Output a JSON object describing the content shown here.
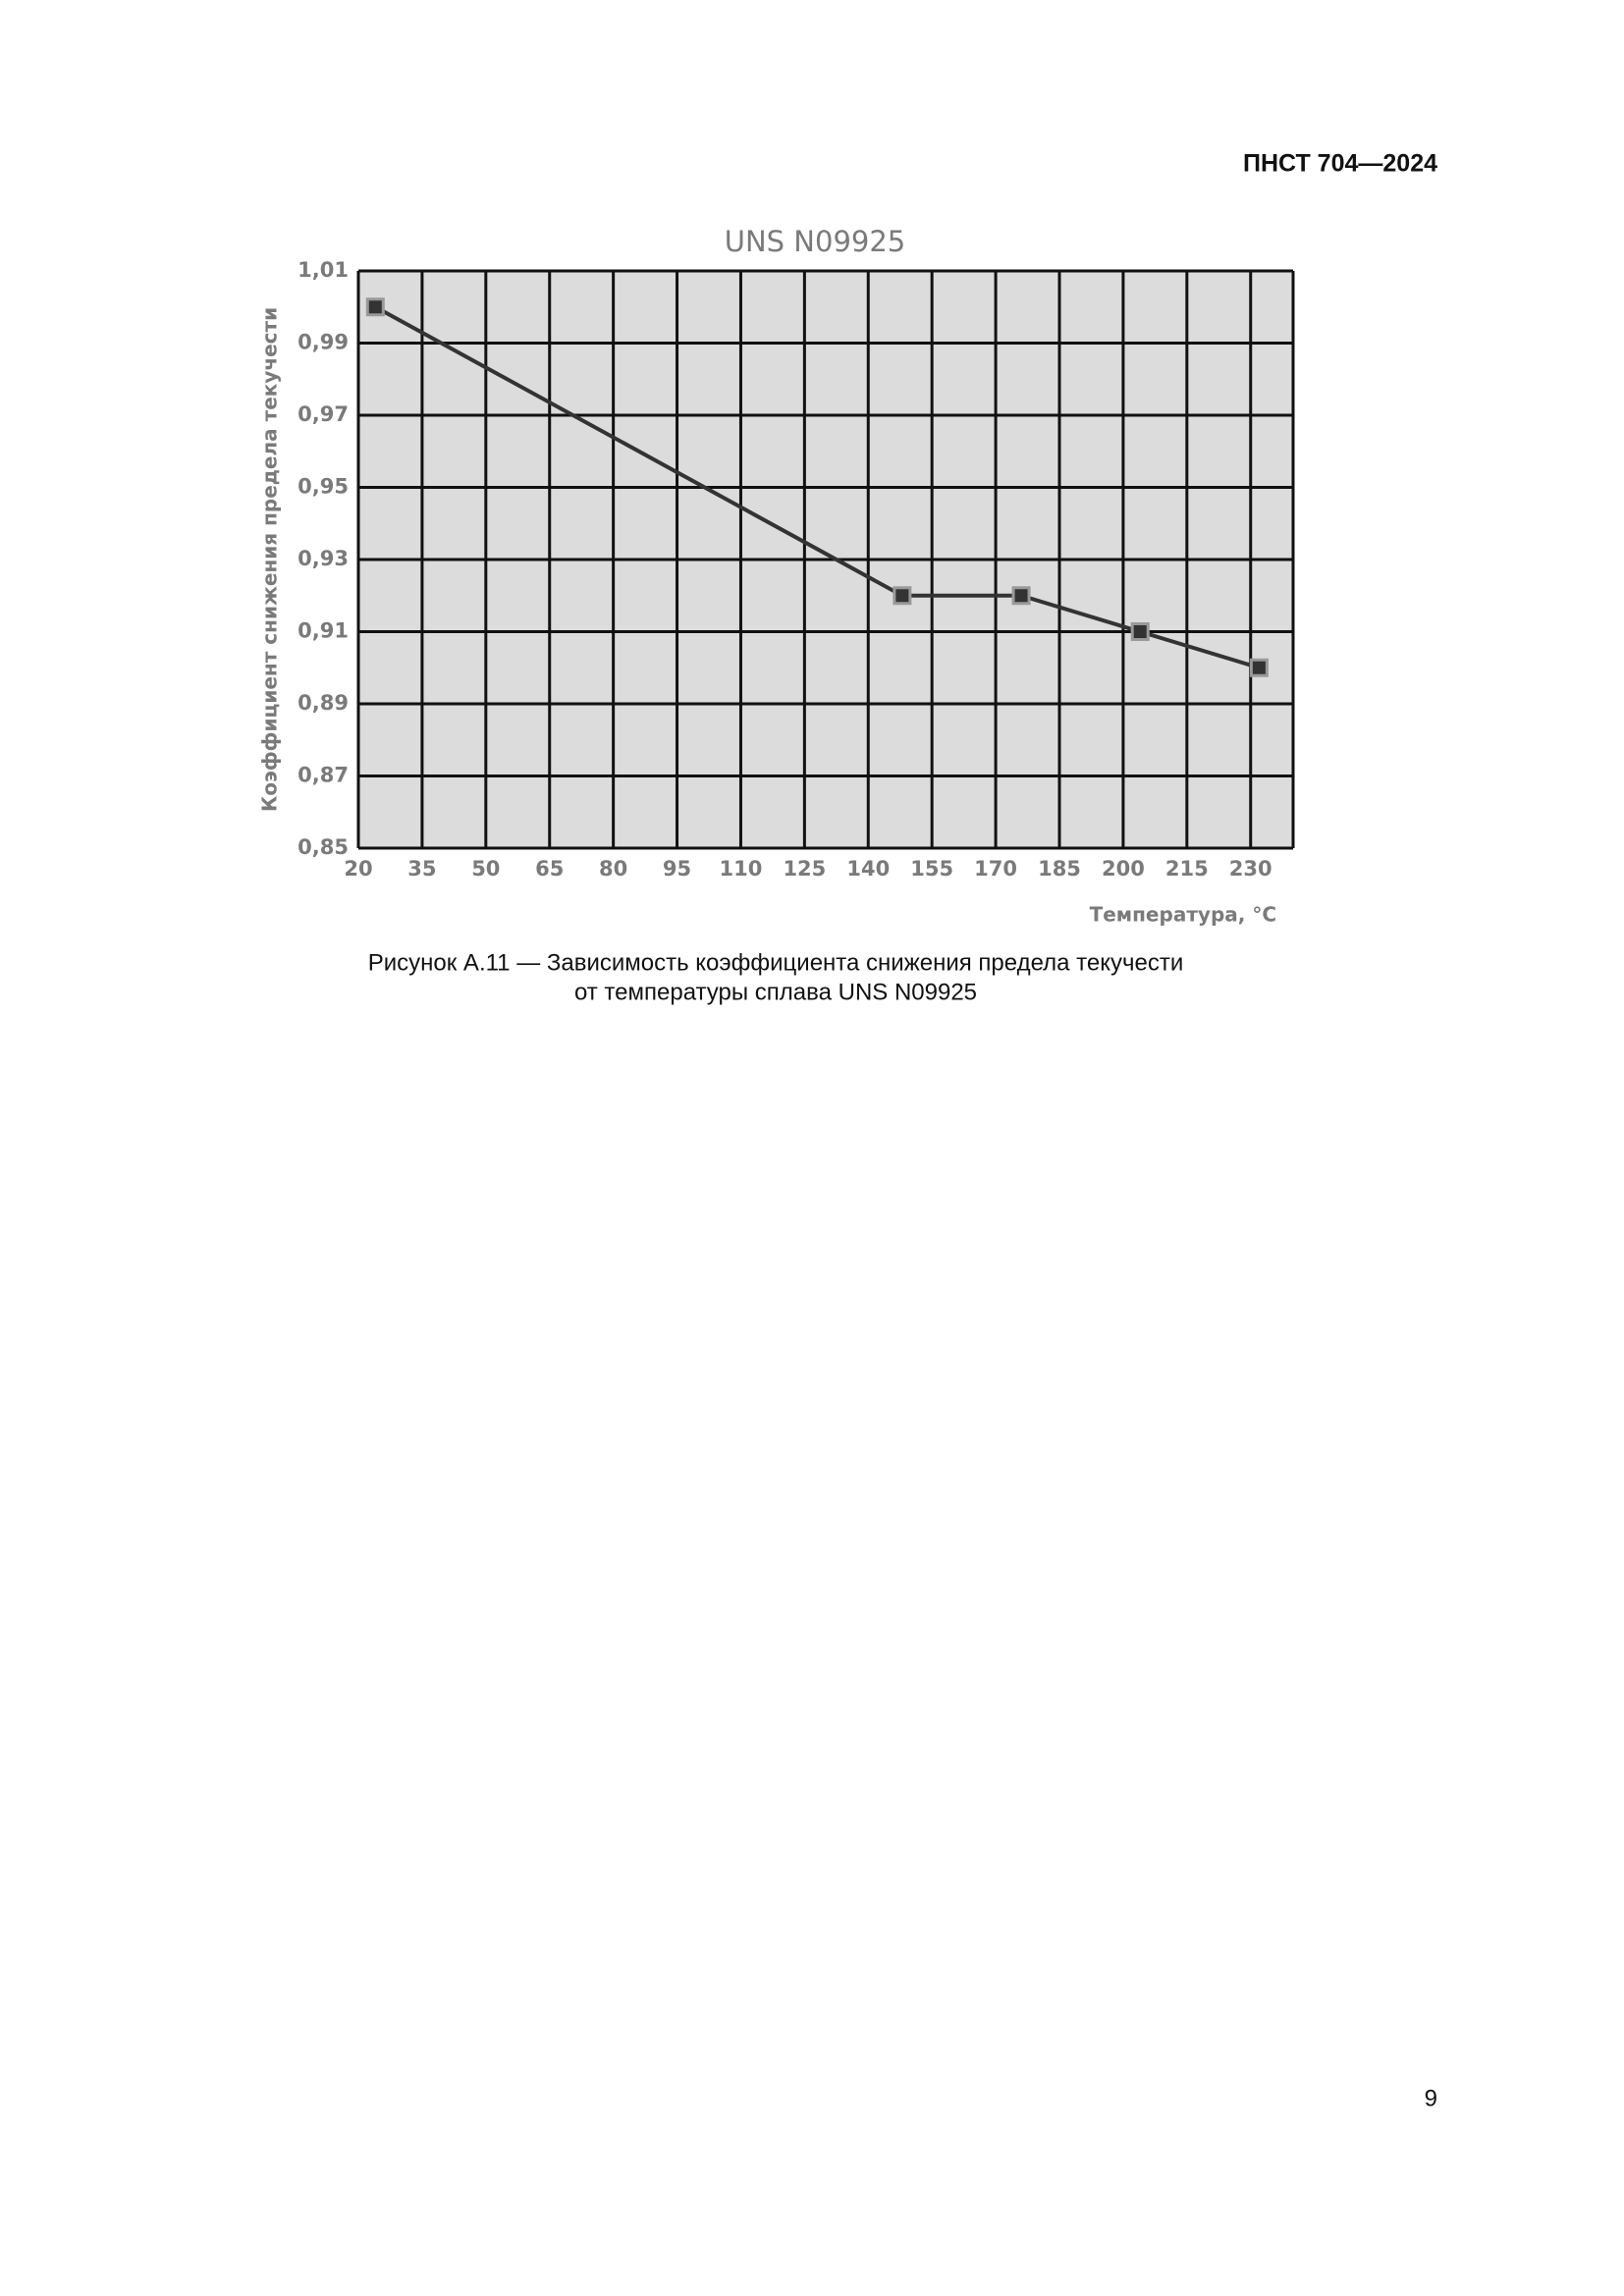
{
  "header": "ПНСТ 704—2024",
  "chart_data": {
    "type": "line",
    "title": "UNS N09925",
    "x_label": "Температура, °C",
    "y_label": "Коэффициент снижения предела текучести",
    "x": [
      24,
      148,
      176,
      204,
      232
    ],
    "values": [
      1.0,
      0.92,
      0.92,
      0.91,
      0.9
    ],
    "color": "#333333",
    "xlim": [
      20,
      240
    ],
    "xticks": [
      20,
      35,
      50,
      65,
      80,
      95,
      110,
      125,
      140,
      155,
      170,
      185,
      200,
      215,
      230
    ],
    "ylim": [
      0.85,
      1.01
    ],
    "yticks": [
      {
        "value": 0.85,
        "label": "0,85"
      },
      {
        "value": 0.87,
        "label": "0,87"
      },
      {
        "value": 0.89,
        "label": "0,89"
      },
      {
        "value": 0.91,
        "label": "0,91"
      },
      {
        "value": 0.93,
        "label": "0,93"
      },
      {
        "value": 0.95,
        "label": "0,95"
      },
      {
        "value": 0.97,
        "label": "0,97"
      },
      {
        "value": 0.99,
        "label": "0,99"
      },
      {
        "value": 1.01,
        "label": "1,01"
      }
    ],
    "grid": true
  },
  "caption": [
    "Рисунок А.11 — Зависимость коэффициента снижения предела текучести",
    "от температуры сплава UNS N09925"
  ],
  "page_number": "9"
}
